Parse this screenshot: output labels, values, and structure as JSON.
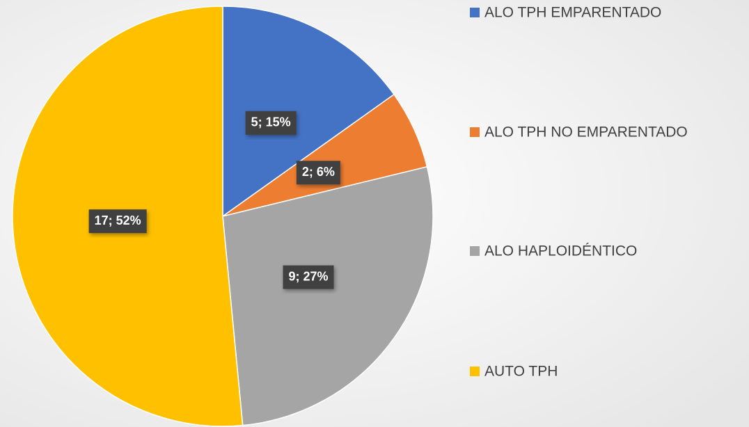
{
  "chart_data": {
    "type": "pie",
    "categories": [
      "ALO TPH EMPARENTADO",
      "ALO TPH NO EMPARENTADO",
      "ALO HAPLOIDÉNTICO",
      "AUTO TPH"
    ],
    "values": [
      5,
      2,
      9,
      17
    ],
    "value_labels": [
      "5; 15%",
      "2; 6%",
      "9; 27%",
      "17; 52%"
    ],
    "colors": [
      "#4472c4",
      "#ed7d31",
      "#a5a5a5",
      "#ffc000"
    ],
    "legend": "right"
  }
}
